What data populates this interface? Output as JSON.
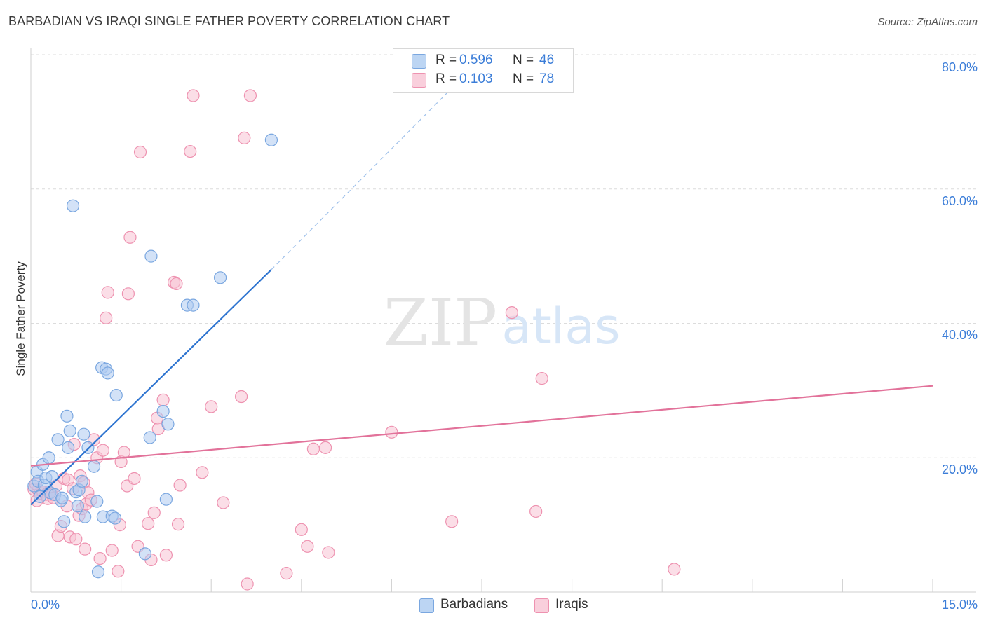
{
  "chart_data": {
    "type": "scatter",
    "title": "BARBADIAN VS IRAQI SINGLE FATHER POVERTY CORRELATION CHART",
    "source": "Source: ZipAtlas.com",
    "xlabel": "",
    "ylabel": "Single Father Poverty",
    "xlim": [
      0,
      15
    ],
    "ylim": [
      0,
      80
    ],
    "x_tick_labels": [
      "0.0%",
      "15.0%"
    ],
    "y_tick_labels": [
      "20.0%",
      "40.0%",
      "60.0%",
      "80.0%"
    ],
    "y_ticks": [
      20,
      40,
      60,
      80
    ],
    "legend_top": [
      {
        "r_label": "R =",
        "r_value": "0.596",
        "n_label": "N =",
        "n_value": "46"
      },
      {
        "r_label": "R =",
        "r_value": "0.103",
        "n_label": "N =",
        "n_value": "78"
      }
    ],
    "legend_bottom": [
      "Barbadians",
      "Iraqis"
    ],
    "watermark": {
      "zip": "ZIP",
      "atlas": "atlas"
    },
    "colors": {
      "barbadians_fill": "#aecbf0",
      "barbadians_stroke": "#7aa7e0",
      "barbadians_line": "#2e74d0",
      "iraqis_fill": "#f7c3d3",
      "iraqis_stroke": "#ee92b0",
      "iraqis_line": "#e2729a",
      "axis_text": "#3b7dd8",
      "grid": "#dcdcdc"
    },
    "series": [
      {
        "name": "Barbadians",
        "trend": {
          "x": [
            0,
            4.0
          ],
          "y": [
            13.0,
            48.0
          ],
          "dashed_to": {
            "x": 7.0,
            "y": 75.0
          }
        },
        "points": [
          [
            0.05,
            15.8
          ],
          [
            0.1,
            17.9
          ],
          [
            0.12,
            16.5
          ],
          [
            0.2,
            19.0
          ],
          [
            0.22,
            15.9
          ],
          [
            0.25,
            17.0
          ],
          [
            0.3,
            20.0
          ],
          [
            0.32,
            14.8
          ],
          [
            0.4,
            14.5
          ],
          [
            0.45,
            22.7
          ],
          [
            0.5,
            13.6
          ],
          [
            0.52,
            14.0
          ],
          [
            0.55,
            10.5
          ],
          [
            0.6,
            26.2
          ],
          [
            0.62,
            21.5
          ],
          [
            0.65,
            24.0
          ],
          [
            0.7,
            57.5
          ],
          [
            0.75,
            14.9
          ],
          [
            0.78,
            12.8
          ],
          [
            0.8,
            15.2
          ],
          [
            0.85,
            16.5
          ],
          [
            0.88,
            23.5
          ],
          [
            0.9,
            11.2
          ],
          [
            0.95,
            21.5
          ],
          [
            1.05,
            18.7
          ],
          [
            1.1,
            13.5
          ],
          [
            1.12,
            3.0
          ],
          [
            1.18,
            33.4
          ],
          [
            1.2,
            11.2
          ],
          [
            1.25,
            33.2
          ],
          [
            1.28,
            32.6
          ],
          [
            1.35,
            11.3
          ],
          [
            1.4,
            11.0
          ],
          [
            1.42,
            29.3
          ],
          [
            1.9,
            5.7
          ],
          [
            1.98,
            23.0
          ],
          [
            2.0,
            50.0
          ],
          [
            2.2,
            26.9
          ],
          [
            2.25,
            13.8
          ],
          [
            2.28,
            25.0
          ],
          [
            2.6,
            42.7
          ],
          [
            2.7,
            42.7
          ],
          [
            3.15,
            46.8
          ],
          [
            4.0,
            67.3
          ],
          [
            0.35,
            17.2
          ],
          [
            0.15,
            14.2
          ]
        ]
      },
      {
        "name": "Iraqis",
        "trend": {
          "x": [
            0,
            15
          ],
          "y": [
            18.8,
            30.7
          ]
        },
        "points": [
          [
            0.05,
            15.3
          ],
          [
            0.1,
            13.6
          ],
          [
            0.12,
            15.2
          ],
          [
            0.15,
            14.7
          ],
          [
            0.2,
            14.9
          ],
          [
            0.25,
            14.5
          ],
          [
            0.28,
            13.9
          ],
          [
            0.3,
            14.9
          ],
          [
            0.35,
            14.5
          ],
          [
            0.38,
            14.0
          ],
          [
            0.42,
            15.8
          ],
          [
            0.45,
            8.4
          ],
          [
            0.5,
            9.8
          ],
          [
            0.55,
            16.9
          ],
          [
            0.6,
            12.8
          ],
          [
            0.62,
            16.7
          ],
          [
            0.65,
            8.2
          ],
          [
            0.7,
            15.4
          ],
          [
            0.72,
            22.0
          ],
          [
            0.75,
            7.9
          ],
          [
            0.8,
            11.4
          ],
          [
            0.82,
            17.3
          ],
          [
            0.85,
            12.4
          ],
          [
            0.88,
            16.3
          ],
          [
            0.9,
            6.4
          ],
          [
            0.92,
            13.1
          ],
          [
            0.95,
            14.8
          ],
          [
            1.0,
            13.7
          ],
          [
            1.05,
            22.7
          ],
          [
            1.1,
            20.0
          ],
          [
            1.15,
            5.0
          ],
          [
            1.2,
            21.1
          ],
          [
            1.25,
            40.8
          ],
          [
            1.28,
            44.6
          ],
          [
            1.35,
            6.2
          ],
          [
            1.45,
            3.1
          ],
          [
            1.48,
            10.0
          ],
          [
            1.5,
            19.4
          ],
          [
            1.55,
            20.8
          ],
          [
            1.6,
            15.8
          ],
          [
            1.62,
            44.4
          ],
          [
            1.65,
            52.8
          ],
          [
            1.72,
            16.9
          ],
          [
            1.78,
            6.8
          ],
          [
            1.82,
            65.5
          ],
          [
            1.95,
            10.2
          ],
          [
            2.0,
            4.8
          ],
          [
            2.05,
            11.8
          ],
          [
            2.1,
            25.9
          ],
          [
            2.12,
            24.3
          ],
          [
            2.2,
            28.6
          ],
          [
            2.25,
            5.5
          ],
          [
            2.38,
            46.1
          ],
          [
            2.42,
            45.9
          ],
          [
            2.45,
            10.1
          ],
          [
            2.48,
            15.9
          ],
          [
            2.65,
            65.6
          ],
          [
            2.7,
            73.9
          ],
          [
            2.85,
            17.8
          ],
          [
            3.0,
            27.6
          ],
          [
            3.2,
            13.3
          ],
          [
            3.5,
            29.1
          ],
          [
            3.55,
            67.6
          ],
          [
            3.6,
            1.2
          ],
          [
            3.65,
            73.9
          ],
          [
            4.25,
            2.8
          ],
          [
            4.5,
            9.3
          ],
          [
            4.6,
            6.8
          ],
          [
            4.7,
            21.3
          ],
          [
            4.9,
            21.5
          ],
          [
            4.95,
            5.9
          ],
          [
            6.0,
            23.8
          ],
          [
            7.0,
            10.5
          ],
          [
            8.0,
            41.6
          ],
          [
            8.4,
            12.0
          ],
          [
            8.5,
            31.8
          ],
          [
            10.7,
            3.4
          ],
          [
            0.08,
            16.1
          ]
        ]
      }
    ]
  }
}
